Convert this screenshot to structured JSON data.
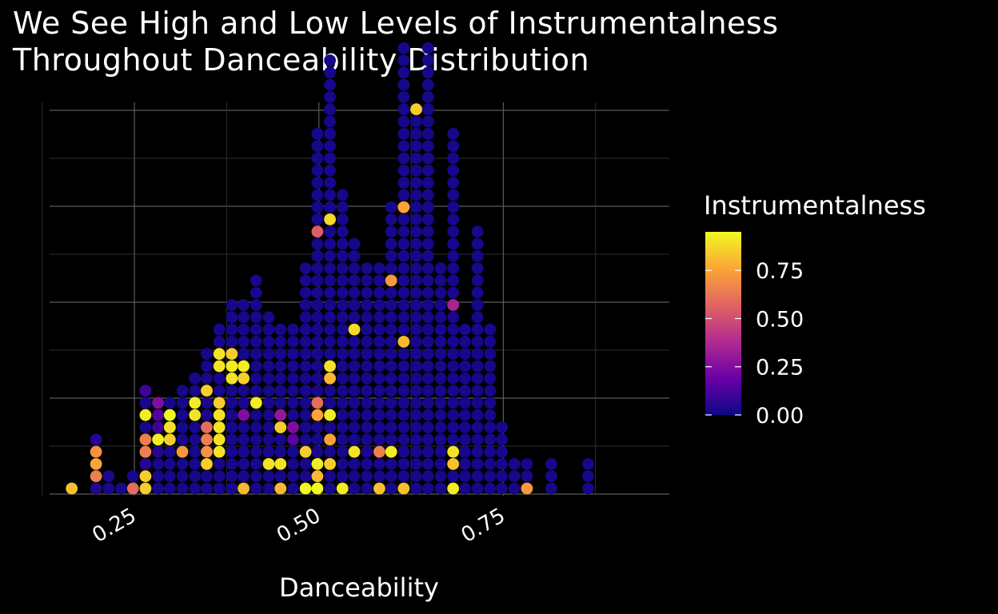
{
  "chart_data": {
    "type": "dotplot",
    "title_lines": [
      "We See High and Low Levels of Instrumentalness",
      "Throughout Danceability Distribution"
    ],
    "xlabel": "Danceability",
    "ylabel": "",
    "xlim": [
      0.135,
      0.975
    ],
    "x_ticks": [
      0.25,
      0.5,
      0.75
    ],
    "x_tick_labels": [
      "0.25",
      "0.50",
      "0.75"
    ],
    "grid": true,
    "background": "#000000",
    "legend": {
      "title": "Instrumentalness",
      "position": "right",
      "ticks": [
        0.0,
        0.25,
        0.5,
        0.75
      ],
      "tick_labels": [
        "0.00",
        "0.25",
        "0.50",
        "0.75"
      ],
      "range": [
        0,
        0.95
      ],
      "palette": [
        "#0d0887",
        "#6a00a8",
        "#b12a90",
        "#e16462",
        "#fca636",
        "#f0f921"
      ]
    },
    "bins": [
      {
        "x": 0.165,
        "values": [
          0.82
        ]
      },
      {
        "x": 0.198,
        "values": [
          0.05,
          0.65,
          0.75,
          0.7,
          0.05
        ]
      },
      {
        "x": 0.215,
        "values": [
          0.02,
          0.03
        ]
      },
      {
        "x": 0.232,
        "values": [
          0.02
        ]
      },
      {
        "x": 0.248,
        "values": [
          0.6,
          0.02
        ]
      },
      {
        "x": 0.265,
        "values": [
          0.85,
          0.85,
          0.05,
          0.65,
          0.65,
          0.02,
          0.92,
          0.02,
          0.1
        ]
      },
      {
        "x": 0.282,
        "values": [
          0.02,
          0.02,
          0.02,
          0.05,
          0.92,
          0.1,
          0.15,
          0.25
        ]
      },
      {
        "x": 0.298,
        "values": [
          0.02,
          0.02,
          0.02,
          0.02,
          0.85,
          0.9,
          0.95,
          0.02
        ]
      },
      {
        "x": 0.315,
        "values": [
          0.02,
          0.02,
          0.02,
          0.72,
          0.02,
          0.02,
          0.02,
          0.02,
          0.02
        ]
      },
      {
        "x": 0.332,
        "values": [
          0.02,
          0.02,
          0.02,
          0.02,
          0.02,
          0.02,
          0.9,
          0.92,
          0.02,
          0.02
        ]
      },
      {
        "x": 0.348,
        "values": [
          0.02,
          0.02,
          0.85,
          0.7,
          0.65,
          0.6,
          0.02,
          0.02,
          0.85,
          0.02,
          0.02,
          0.02
        ]
      },
      {
        "x": 0.365,
        "values": [
          0.02,
          0.02,
          0.02,
          0.9,
          0.9,
          0.9,
          0.9,
          0.85,
          0.02,
          0.02,
          0.9,
          0.9,
          0.02,
          0.02
        ]
      },
      {
        "x": 0.382,
        "values": [
          0.02,
          0.02,
          0.02,
          0.02,
          0.02,
          0.02,
          0.02,
          0.02,
          0.02,
          0.9,
          0.92,
          0.85,
          0.02,
          0.02,
          0.02,
          0.02
        ]
      },
      {
        "x": 0.398,
        "values": [
          0.8,
          0.02,
          0.02,
          0.02,
          0.02,
          0.02,
          0.25,
          0.02,
          0.02,
          0.85,
          0.92,
          0.02,
          0.02,
          0.02,
          0.02,
          0.02
        ]
      },
      {
        "x": 0.415,
        "values": [
          0.02,
          0.02,
          0.02,
          0.02,
          0.02,
          0.02,
          0.02,
          0.92,
          0.02,
          0.02,
          0.02,
          0.02,
          0.02,
          0.02,
          0.02,
          0.02,
          0.02,
          0.02
        ]
      },
      {
        "x": 0.432,
        "values": [
          0.02,
          0.02,
          0.9,
          0.02,
          0.02,
          0.02,
          0.02,
          0.02,
          0.02,
          0.02,
          0.02,
          0.02,
          0.02,
          0.02,
          0.02
        ]
      },
      {
        "x": 0.448,
        "values": [
          0.8,
          0.02,
          0.9,
          0.02,
          0.02,
          0.85,
          0.3,
          0.02,
          0.02,
          0.02,
          0.02,
          0.02,
          0.02,
          0.02
        ]
      },
      {
        "x": 0.465,
        "values": [
          0.02,
          0.02,
          0.02,
          0.02,
          0.15,
          0.25,
          0.02,
          0.02,
          0.02,
          0.02,
          0.02,
          0.02,
          0.02,
          0.02
        ]
      },
      {
        "x": 0.482,
        "values": [
          0.95,
          0.02,
          0.02,
          0.85,
          0.02,
          0.02,
          0.02,
          0.02,
          0.02,
          0.02,
          0.02,
          0.02,
          0.02,
          0.02,
          0.02,
          0.02,
          0.02,
          0.02,
          0.02
        ]
      },
      {
        "x": 0.498,
        "values": [
          0.95,
          0.8,
          0.92,
          0.02,
          0.02,
          0.02,
          0.75,
          0.6,
          0.02,
          0.02,
          0.02,
          0.02,
          0.02,
          0.02,
          0.02,
          0.02,
          0.02,
          0.02,
          0.02,
          0.02,
          0.02,
          0.55,
          0.02,
          0.02,
          0.02,
          0.02,
          0.02,
          0.02,
          0.02,
          0.02
        ]
      },
      {
        "x": 0.515,
        "values": [
          0.02,
          0.02,
          0.85,
          0.02,
          0.75,
          0.02,
          0.92,
          0.02,
          0.02,
          0.8,
          0.9,
          0.02,
          0.02,
          0.02,
          0.02,
          0.02,
          0.02,
          0.02,
          0.02,
          0.02,
          0.02,
          0.02,
          0.88,
          0.02,
          0.02,
          0.02,
          0.02,
          0.02,
          0.02,
          0.02,
          0.02,
          0.02,
          0.02,
          0.02,
          0.02,
          0.02
        ]
      },
      {
        "x": 0.532,
        "values": [
          0.92,
          0.02,
          0.02,
          0.02,
          0.02,
          0.02,
          0.02,
          0.02,
          0.02,
          0.02,
          0.02,
          0.02,
          0.02,
          0.02,
          0.02,
          0.02,
          0.02,
          0.02,
          0.02,
          0.02,
          0.02,
          0.02,
          0.02,
          0.02,
          0.02
        ]
      },
      {
        "x": 0.548,
        "values": [
          0.02,
          0.02,
          0.02,
          0.9,
          0.02,
          0.02,
          0.02,
          0.02,
          0.02,
          0.02,
          0.02,
          0.02,
          0.02,
          0.88,
          0.02,
          0.02,
          0.02,
          0.02,
          0.02,
          0.02,
          0.02
        ]
      },
      {
        "x": 0.565,
        "values": [
          0.02,
          0.02,
          0.02,
          0.02,
          0.02,
          0.02,
          0.02,
          0.02,
          0.02,
          0.02,
          0.02,
          0.02,
          0.02,
          0.02,
          0.02,
          0.02,
          0.02,
          0.02,
          0.02
        ]
      },
      {
        "x": 0.582,
        "values": [
          0.82,
          0.02,
          0.02,
          0.65,
          0.02,
          0.02,
          0.02,
          0.02,
          0.02,
          0.02,
          0.02,
          0.02,
          0.02,
          0.02,
          0.02,
          0.02,
          0.02,
          0.02,
          0.02
        ]
      },
      {
        "x": 0.598,
        "values": [
          0.02,
          0.02,
          0.02,
          0.92,
          0.02,
          0.02,
          0.02,
          0.02,
          0.02,
          0.02,
          0.02,
          0.02,
          0.02,
          0.02,
          0.02,
          0.02,
          0.02,
          0.72,
          0.02,
          0.02,
          0.02,
          0.02,
          0.02,
          0.02
        ]
      },
      {
        "x": 0.615,
        "values": [
          0.82,
          0.02,
          0.02,
          0.02,
          0.02,
          0.02,
          0.02,
          0.02,
          0.02,
          0.02,
          0.02,
          0.02,
          0.8,
          0.02,
          0.02,
          0.02,
          0.02,
          0.02,
          0.02,
          0.02,
          0.02,
          0.02,
          0.02,
          0.75,
          0.02,
          0.02,
          0.02,
          0.02,
          0.02,
          0.02,
          0.02,
          0.02,
          0.02,
          0.02,
          0.02,
          0.02,
          0.02
        ]
      },
      {
        "x": 0.632,
        "values": [
          0.02,
          0.02,
          0.02,
          0.02,
          0.02,
          0.02,
          0.02,
          0.02,
          0.02,
          0.02,
          0.02,
          0.02,
          0.02,
          0.02,
          0.02,
          0.02,
          0.02,
          0.02,
          0.02,
          0.02,
          0.02,
          0.02,
          0.02,
          0.02,
          0.02,
          0.02,
          0.02,
          0.02,
          0.02,
          0.02,
          0.02,
          0.85
        ]
      },
      {
        "x": 0.648,
        "values": [
          0.02,
          0.02,
          0.02,
          0.02,
          0.02,
          0.02,
          0.02,
          0.02,
          0.02,
          0.02,
          0.02,
          0.02,
          0.02,
          0.02,
          0.02,
          0.02,
          0.02,
          0.02,
          0.02,
          0.02,
          0.02,
          0.02,
          0.02,
          0.02,
          0.02,
          0.02,
          0.02,
          0.02,
          0.02,
          0.02,
          0.02,
          0.02,
          0.02,
          0.02,
          0.02,
          0.02,
          0.02
        ]
      },
      {
        "x": 0.665,
        "values": [
          0.02,
          0.02,
          0.02,
          0.02,
          0.02,
          0.02,
          0.02,
          0.02,
          0.02,
          0.02,
          0.02,
          0.02,
          0.02,
          0.02,
          0.02,
          0.02,
          0.02,
          0.02,
          0.02
        ]
      },
      {
        "x": 0.682,
        "values": [
          0.92,
          0.02,
          0.82,
          0.9,
          0.02,
          0.02,
          0.02,
          0.02,
          0.02,
          0.02,
          0.02,
          0.02,
          0.02,
          0.02,
          0.02,
          0.35,
          0.02,
          0.02,
          0.02,
          0.02,
          0.02,
          0.02,
          0.02,
          0.02,
          0.02,
          0.02,
          0.02,
          0.02,
          0.02,
          0.02
        ]
      },
      {
        "x": 0.698,
        "values": [
          0.02,
          0.02,
          0.02,
          0.02,
          0.02,
          0.02,
          0.02,
          0.02,
          0.02,
          0.02,
          0.02,
          0.02,
          0.02,
          0.02
        ]
      },
      {
        "x": 0.715,
        "values": [
          0.02,
          0.02,
          0.02,
          0.02,
          0.02,
          0.02,
          0.02,
          0.02,
          0.02,
          0.02,
          0.02,
          0.02,
          0.02,
          0.02,
          0.02,
          0.02,
          0.02,
          0.02,
          0.02,
          0.02,
          0.02,
          0.02
        ]
      },
      {
        "x": 0.732,
        "values": [
          0.02,
          0.02,
          0.02,
          0.02,
          0.02,
          0.02,
          0.02,
          0.02,
          0.02,
          0.02,
          0.02,
          0.02,
          0.02,
          0.02
        ]
      },
      {
        "x": 0.748,
        "values": [
          0.02,
          0.02,
          0.02,
          0.02,
          0.02,
          0.02
        ]
      },
      {
        "x": 0.765,
        "values": [
          0.02,
          0.02,
          0.02
        ]
      },
      {
        "x": 0.782,
        "values": [
          0.72,
          0.02,
          0.02
        ]
      },
      {
        "x": 0.815,
        "values": [
          0.02,
          0.02,
          0.02
        ]
      },
      {
        "x": 0.865,
        "values": [
          0.02,
          0.02,
          0.02
        ]
      }
    ]
  }
}
